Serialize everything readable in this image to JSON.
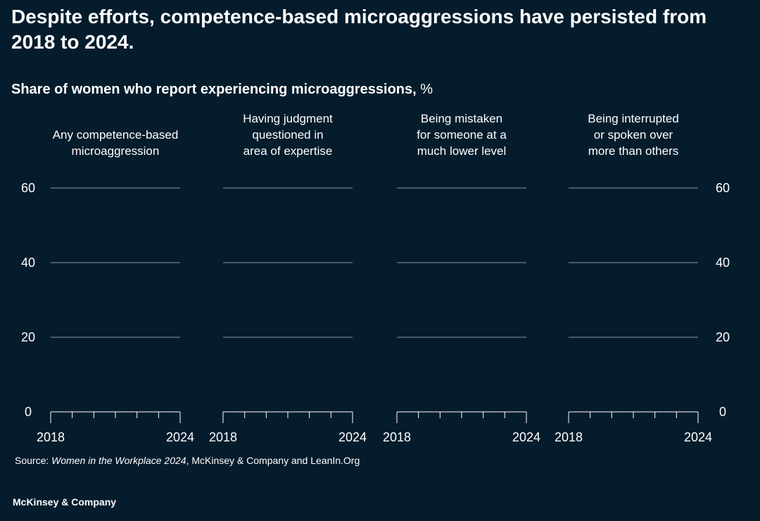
{
  "headline": "Despite efforts, competence-based microaggressions have persisted from 2018 to 2024.",
  "subtitle": {
    "bold": "Share of women who report experiencing microaggressions,",
    "unit": " %"
  },
  "source": {
    "prefix": "Source: ",
    "publication": "Women in the Workplace 2024",
    "suffix": ", McKinsey & Company and LeanIn.Org"
  },
  "brand": "McKinsey & Company",
  "colors": {
    "background": "#051c2c",
    "text": "#ffffff",
    "gridline": "#8a98a3"
  },
  "chart_data": {
    "type": "line",
    "x": [
      2018,
      2019,
      2020,
      2021,
      2022,
      2023,
      2024
    ],
    "ylim": [
      0,
      60
    ],
    "yticks": [
      0,
      20,
      40,
      60
    ],
    "xtick_labels": [
      "2018",
      "2024"
    ],
    "grid": true,
    "panels": [
      {
        "title": [
          "Any competence-based",
          "microaggression"
        ],
        "values": []
      },
      {
        "title": [
          "Having judgment",
          "questioned in",
          "area of expertise"
        ],
        "values": []
      },
      {
        "title": [
          "Being mistaken",
          "for someone at a",
          "much lower level"
        ],
        "values": []
      },
      {
        "title": [
          "Being interrupted",
          "or spoken over",
          "more than others"
        ],
        "values": []
      }
    ]
  }
}
